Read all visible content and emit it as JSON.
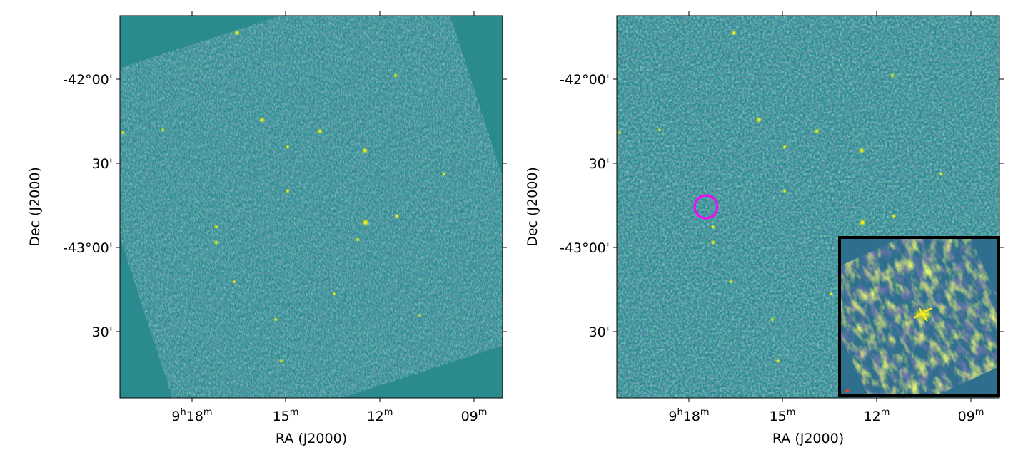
{
  "figure": {
    "panels": [
      {
        "id": "left",
        "x_axis_label": "RA (J2000)",
        "y_axis_label": "Dec (J2000)",
        "x_ticks": [
          {
            "base": "9",
            "sup1": "h",
            "mid": "18",
            "sup2": "m"
          },
          {
            "base": "",
            "sup1": "",
            "mid": "15",
            "sup2": "m"
          },
          {
            "base": "",
            "sup1": "",
            "mid": "12",
            "sup2": "m"
          },
          {
            "base": "",
            "sup1": "",
            "mid": "09",
            "sup2": "m"
          }
        ],
        "y_ticks": [
          "-42°00'",
          "30'",
          "-43°00'",
          "30'"
        ],
        "colormap": "viridis",
        "has_marker": false,
        "has_inset": false
      },
      {
        "id": "right",
        "x_axis_label": "RA (J2000)",
        "y_axis_label": "Dec (J2000)",
        "x_ticks": [
          {
            "base": "9",
            "sup1": "h",
            "mid": "18",
            "sup2": "m"
          },
          {
            "base": "",
            "sup1": "",
            "mid": "15",
            "sup2": "m"
          },
          {
            "base": "",
            "sup1": "",
            "mid": "12",
            "sup2": "m"
          },
          {
            "base": "",
            "sup1": "",
            "mid": "09",
            "sup2": "m"
          }
        ],
        "y_ticks": [
          "-42°00'",
          "30'",
          "-43°00'",
          "30'"
        ],
        "colormap": "viridis",
        "has_marker": true,
        "marker_color": "#ff00ff",
        "has_inset": true,
        "inset_border_color": "#000000"
      }
    ]
  },
  "colors": {
    "background": "#2c8a8c",
    "noise_dark": "#3b4d8f",
    "noise_light": "#2fb47c",
    "source": "#fde725",
    "inset_dark": "#3a3b7f",
    "inset_light": "#c8df2f"
  }
}
